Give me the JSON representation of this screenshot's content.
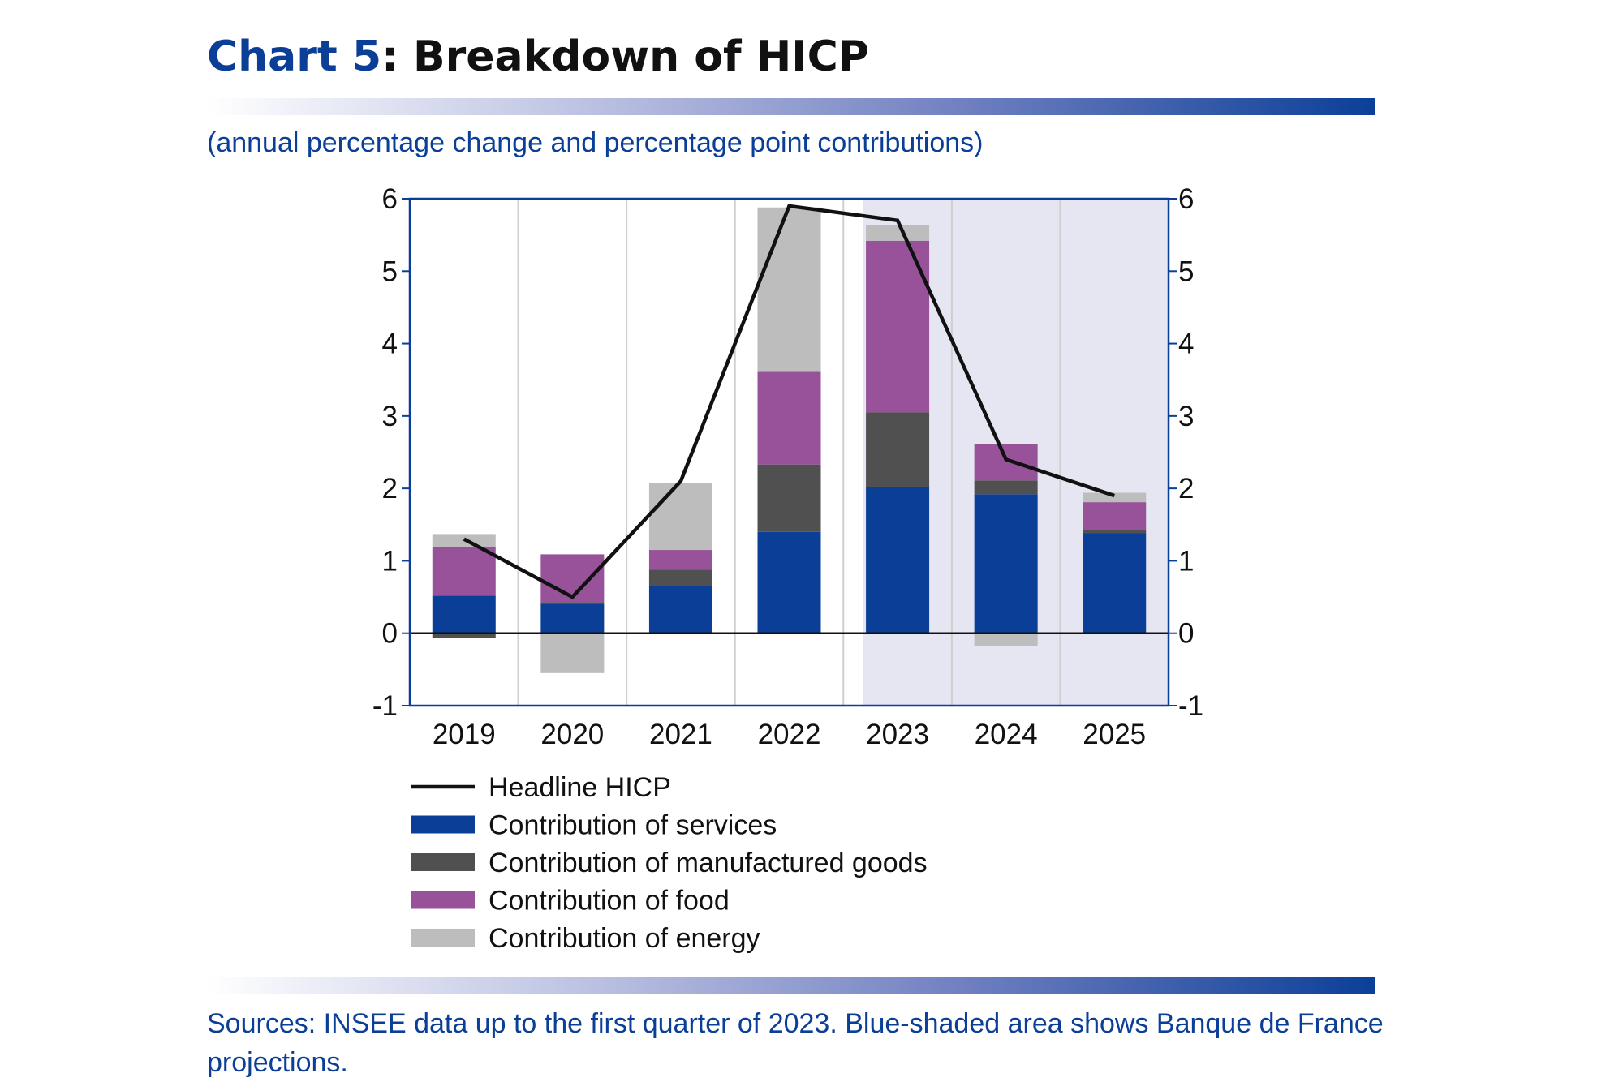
{
  "header": {
    "title_num": "Chart 5",
    "title_rest": ": Breakdown of HICP",
    "subtitle": "(annual percentage change and percentage point contributions)"
  },
  "footer": {
    "sources": "Sources: INSEE data up to the first quarter of 2023. Blue-shaded area shows Banque de France projections."
  },
  "colors": {
    "accent": "#0b3f97",
    "services": "#0b3f97",
    "manufactured": "#505050",
    "food": "#985299",
    "energy": "#bdbdbd",
    "headline": "#111111",
    "projection_shade": "#e6e6f2"
  },
  "chart_data": {
    "type": "bar",
    "stacked": true,
    "categories": [
      "2019",
      "2020",
      "2021",
      "2022",
      "2023",
      "2024",
      "2025"
    ],
    "ylim": [
      -1,
      6
    ],
    "yticks": [
      -1,
      0,
      1,
      2,
      3,
      4,
      5,
      6
    ],
    "dual_axis": true,
    "grid": "vertical",
    "projection_start_category": "2023",
    "series": [
      {
        "name": "Contribution of services",
        "key": "services",
        "values": [
          0.52,
          0.4,
          0.65,
          1.4,
          2.02,
          1.92,
          1.38
        ]
      },
      {
        "name": "Contribution of manufactured goods",
        "key": "manufactured",
        "values": [
          -0.07,
          0.03,
          0.23,
          0.93,
          1.03,
          0.19,
          0.05
        ]
      },
      {
        "name": "Contribution of food",
        "key": "food",
        "values": [
          0.67,
          0.66,
          0.27,
          1.28,
          2.37,
          0.5,
          0.38
        ]
      },
      {
        "name": "Contribution of energy",
        "key": "energy",
        "values": [
          0.18,
          -0.55,
          0.92,
          2.27,
          0.22,
          -0.18,
          0.13
        ]
      }
    ],
    "line": {
      "name": "Headline HICP",
      "values": [
        1.3,
        0.5,
        2.1,
        5.9,
        5.7,
        2.4,
        1.9
      ]
    },
    "legend": [
      {
        "label": "Headline HICP",
        "kind": "line",
        "key": "headline"
      },
      {
        "label": "Contribution of services",
        "kind": "box",
        "key": "services"
      },
      {
        "label": "Contribution of manufactured goods",
        "kind": "box",
        "key": "manufactured"
      },
      {
        "label": "Contribution of food",
        "kind": "box",
        "key": "food"
      },
      {
        "label": "Contribution of energy",
        "kind": "box",
        "key": "energy"
      }
    ]
  }
}
